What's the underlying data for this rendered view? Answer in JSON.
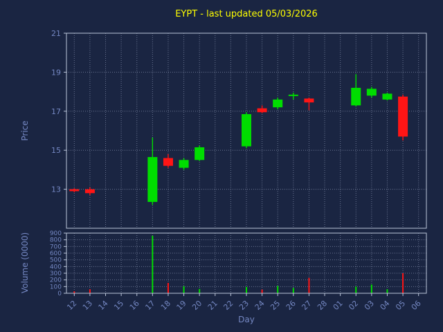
{
  "title": "EYPT - last updated 05/03/2026",
  "axes": {
    "x_label": "Day",
    "price_label": "Price",
    "volume_label": "Volume (0000)"
  },
  "chart_data": {
    "type": "candlestick",
    "title": "EYPT - last updated 05/03/2026",
    "xlabel": "Day",
    "ylabel_price": "Price",
    "ylabel_volume": "Volume (0000)",
    "categories": [
      "12",
      "13",
      "14",
      "15",
      "16",
      "17",
      "18",
      "19",
      "20",
      "21",
      "22",
      "23",
      "24",
      "25",
      "26",
      "27",
      "28",
      "01",
      "02",
      "03",
      "04",
      "05",
      "06"
    ],
    "price_ticks": [
      13,
      15,
      17,
      19,
      21
    ],
    "price_ylim": [
      11,
      21
    ],
    "volume_ticks": [
      0,
      100,
      200,
      300,
      400,
      500,
      600,
      700,
      800,
      900
    ],
    "volume_ylim": [
      0,
      900
    ],
    "grid": true,
    "legend": "none",
    "candles": [
      {
        "day": "12",
        "open": 13.0,
        "high": 13.05,
        "low": 12.85,
        "close": 12.9,
        "volume": 30
      },
      {
        "day": "13",
        "open": 13.0,
        "high": 13.1,
        "low": 12.7,
        "close": 12.8,
        "volume": 60
      },
      {
        "day": "17",
        "open": 12.35,
        "high": 15.65,
        "low": 12.2,
        "close": 14.65,
        "volume": 860
      },
      {
        "day": "18",
        "open": 14.6,
        "high": 14.8,
        "low": 14.1,
        "close": 14.2,
        "volume": 155
      },
      {
        "day": "19",
        "open": 14.1,
        "high": 14.6,
        "low": 14.0,
        "close": 14.5,
        "volume": 105
      },
      {
        "day": "20",
        "open": 14.5,
        "high": 15.25,
        "low": 14.45,
        "close": 15.15,
        "volume": 65
      },
      {
        "day": "23",
        "open": 15.2,
        "high": 16.95,
        "low": 15.1,
        "close": 16.85,
        "volume": 95
      },
      {
        "day": "24",
        "open": 17.15,
        "high": 17.3,
        "low": 16.9,
        "close": 16.95,
        "volume": 55
      },
      {
        "day": "25",
        "open": 17.2,
        "high": 17.7,
        "low": 17.1,
        "close": 17.6,
        "volume": 110
      },
      {
        "day": "26",
        "open": 17.78,
        "high": 17.95,
        "low": 17.6,
        "close": 17.85,
        "volume": 80
      },
      {
        "day": "27",
        "open": 17.65,
        "high": 17.7,
        "low": 17.05,
        "close": 17.45,
        "volume": 230
      },
      {
        "day": "02",
        "open": 17.3,
        "high": 18.9,
        "low": 17.25,
        "close": 18.2,
        "volume": 100
      },
      {
        "day": "03",
        "open": 17.8,
        "high": 18.25,
        "low": 17.7,
        "close": 18.15,
        "volume": 130
      },
      {
        "day": "04",
        "open": 17.6,
        "high": 17.95,
        "low": 17.55,
        "close": 17.9,
        "volume": 60
      },
      {
        "day": "05",
        "open": 17.75,
        "high": 17.85,
        "low": 15.5,
        "close": 15.7,
        "volume": 300
      }
    ],
    "colors": {
      "up": "#00dd00",
      "down": "#ff1515",
      "background": "#1a2542",
      "grid": "#aab6d2",
      "spine": "#bcc6da",
      "tick_label": "#7487c2",
      "axis_label": "#7487c2",
      "title": "#ffff00"
    }
  }
}
